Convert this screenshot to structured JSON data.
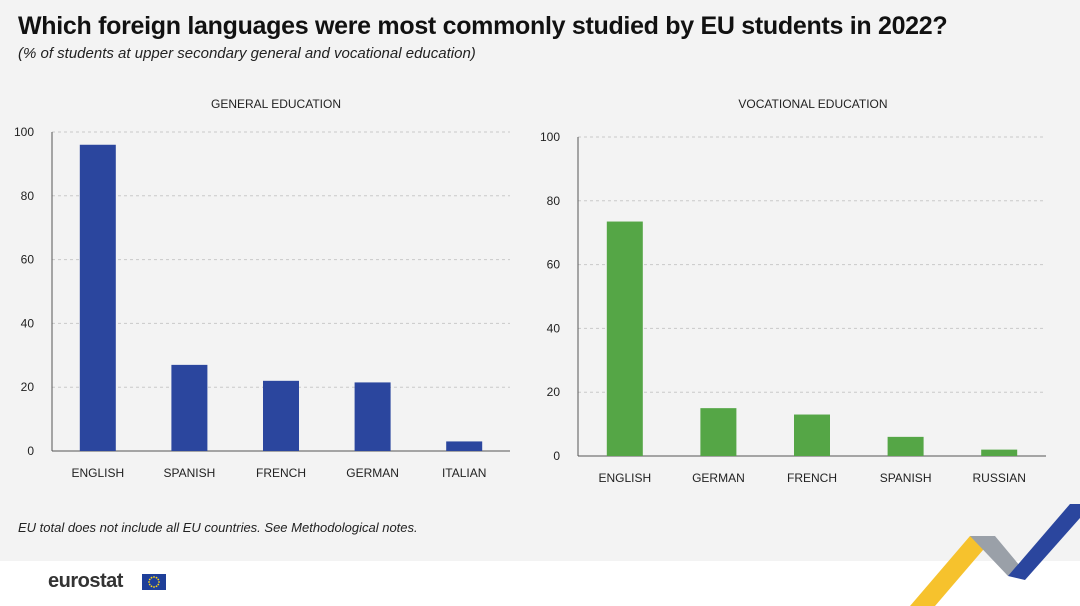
{
  "title": "Which foreign languages were most commonly studied by EU students in 2022?",
  "subtitle": "(% of students at upper secondary general and vocational education)",
  "footnote": "EU total does not include all EU countries. See Methodological notes.",
  "brand": "eurostat",
  "colors": {
    "general": "#2b469e",
    "vocational": "#55a646",
    "grid": "#c9c9c9"
  },
  "chart_data": [
    {
      "type": "bar",
      "title": "GENERAL EDUCATION",
      "categories": [
        "ENGLISH",
        "SPANISH",
        "FRENCH",
        "GERMAN",
        "ITALIAN"
      ],
      "values": [
        96,
        27,
        22,
        21.5,
        3
      ],
      "ylim": [
        0,
        100
      ],
      "yticks": [
        0,
        20,
        40,
        60,
        80,
        100
      ],
      "xlabel": "",
      "ylabel": "",
      "grid": true
    },
    {
      "type": "bar",
      "title": "VOCATIONAL EDUCATION",
      "categories": [
        "ENGLISH",
        "GERMAN",
        "FRENCH",
        "SPANISH",
        "RUSSIAN"
      ],
      "values": [
        73.5,
        15,
        13,
        6,
        2
      ],
      "ylim": [
        0,
        100
      ],
      "yticks": [
        0,
        20,
        40,
        60,
        80,
        100
      ],
      "xlabel": "",
      "ylabel": "",
      "grid": true
    }
  ]
}
